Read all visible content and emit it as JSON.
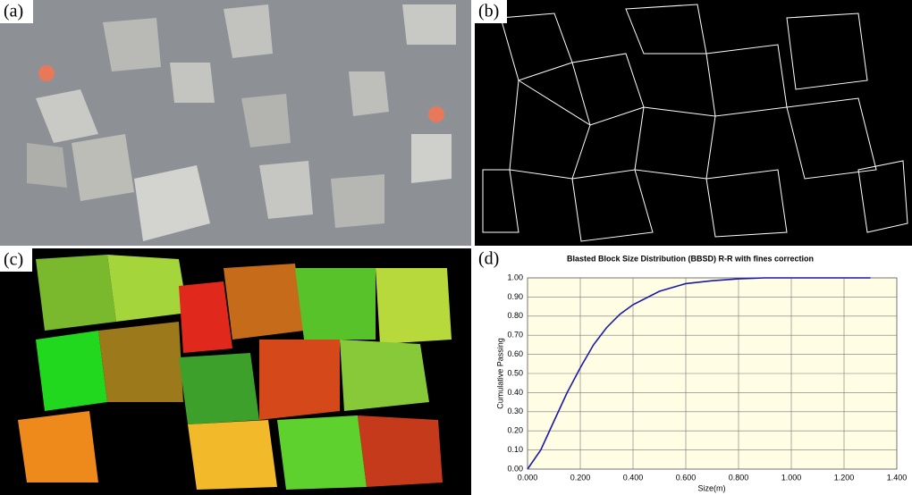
{
  "panels": {
    "a": "(a)",
    "b": "(b)",
    "c": "(c)",
    "d": "(d)"
  },
  "chart_data": {
    "type": "line",
    "title": "Blasted Block Size Distribution (BBSD) R-R with fines correction",
    "x_label": "Size(m)",
    "y_label": "Cumulative Passing",
    "x": [
      0,
      0.05,
      0.1,
      0.15,
      0.2,
      0.25,
      0.3,
      0.35,
      0.4,
      0.5,
      0.6,
      0.7,
      0.8,
      0.9,
      1.0,
      1.1,
      1.2,
      1.3
    ],
    "series": [
      {
        "name": "Cumulative Passing",
        "color": "#1a1aa6",
        "values": [
          0,
          0.1,
          0.25,
          0.4,
          0.53,
          0.65,
          0.74,
          0.81,
          0.86,
          0.93,
          0.97,
          0.985,
          0.995,
          1.0,
          1.0,
          1.0,
          1.0,
          1.0
        ]
      }
    ],
    "xlim": [
      0,
      1.4
    ],
    "ylim": [
      0,
      1
    ],
    "xticks": [
      {
        "value": 0,
        "label": "0.000"
      },
      {
        "value": 0.2,
        "label": "0.200"
      },
      {
        "value": 0.4,
        "label": "0.400"
      },
      {
        "value": 0.6,
        "label": "0.600"
      },
      {
        "value": 0.8,
        "label": "0.800"
      },
      {
        "value": 1.0,
        "label": "1.000"
      },
      {
        "value": 1.2,
        "label": "1.200"
      },
      {
        "value": 1.4,
        "label": "1.400"
      }
    ],
    "yticks": [
      {
        "value": 0,
        "label": "0.00"
      },
      {
        "value": 0.1,
        "label": "0.10"
      },
      {
        "value": 0.2,
        "label": "0.20"
      },
      {
        "value": 0.3,
        "label": "0.30"
      },
      {
        "value": 0.4,
        "label": "0.40"
      },
      {
        "value": 0.5,
        "label": "0.50"
      },
      {
        "value": 0.6,
        "label": "0.60"
      },
      {
        "value": 0.7,
        "label": "0.70"
      },
      {
        "value": 0.8,
        "label": "0.80"
      },
      {
        "value": 0.9,
        "label": "0.90"
      },
      {
        "value": 1.0,
        "label": "1.00"
      }
    ],
    "grid": true,
    "background": "#fffde3"
  }
}
